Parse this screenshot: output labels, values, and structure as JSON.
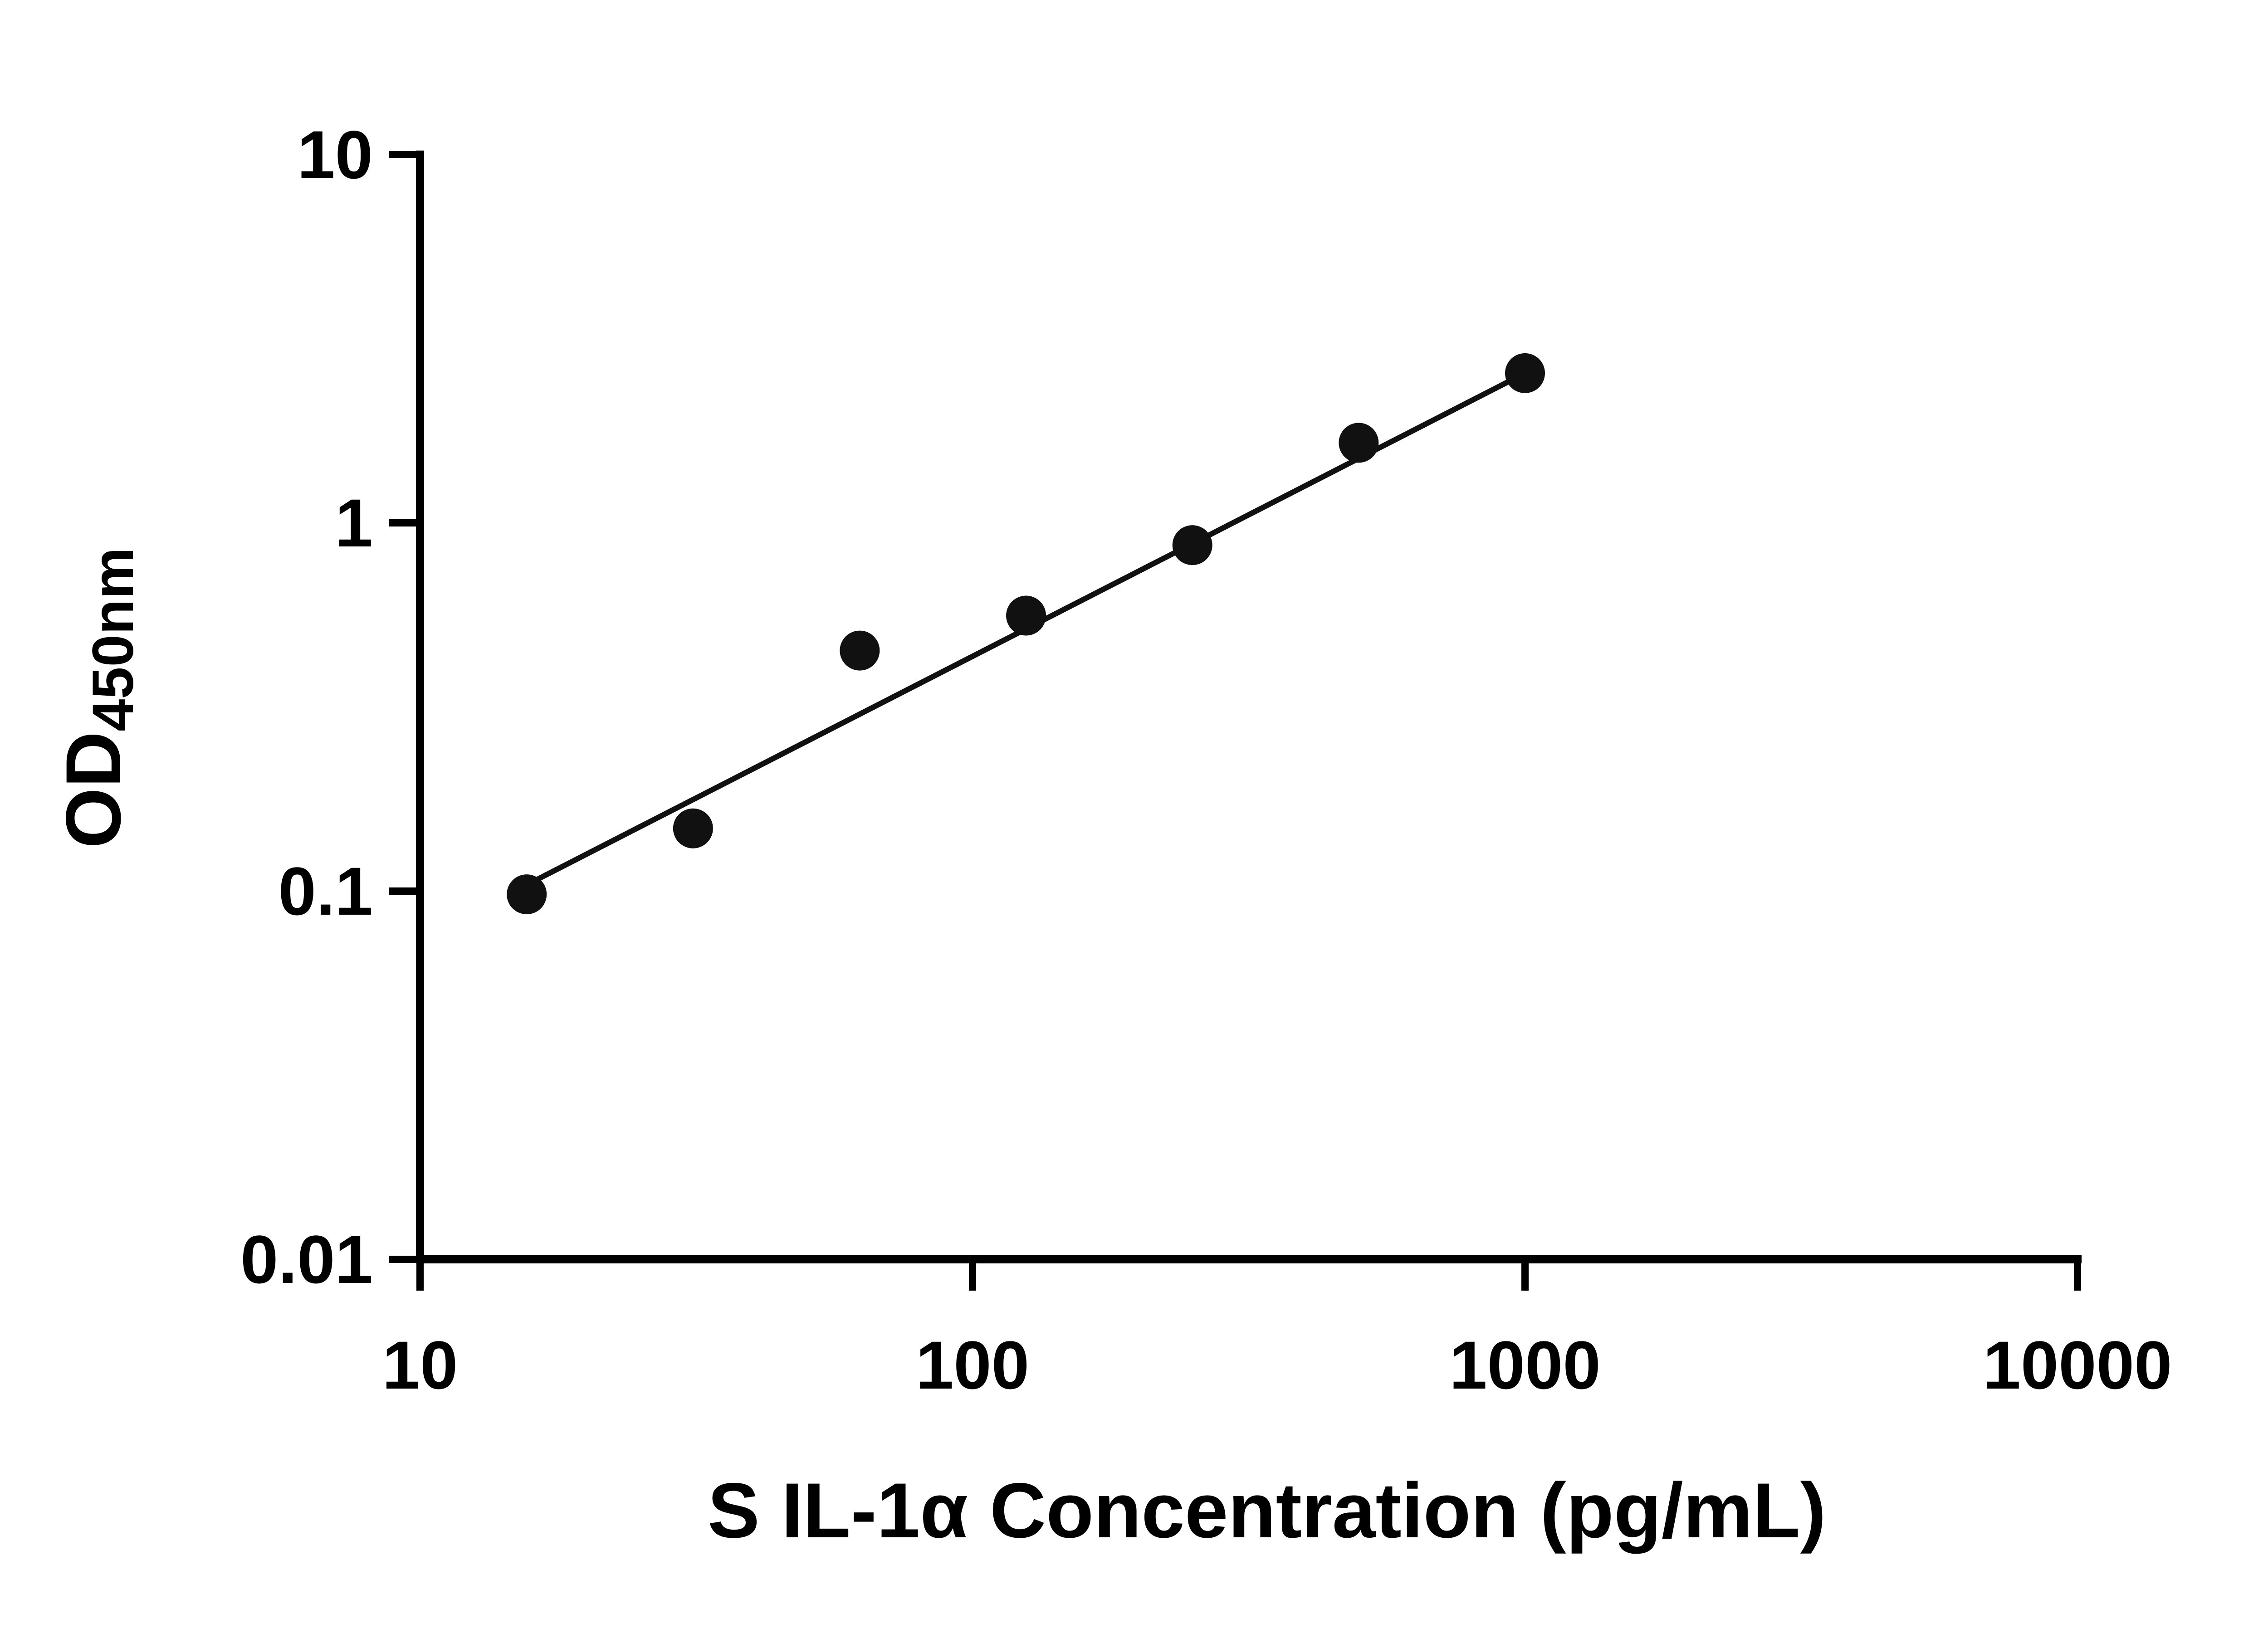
{
  "chart_data": {
    "type": "scatter",
    "title": "",
    "xlabel": "S IL-1α Concentration (pg/mL)",
    "ylabel_main": "OD",
    "ylabel_sub": "450nm",
    "x_scale": "log",
    "y_scale": "log",
    "xlim": [
      10,
      10000
    ],
    "ylim": [
      0.01,
      10
    ],
    "grid": false,
    "legend": false,
    "x_ticks": [
      {
        "value": 10,
        "label": "10"
      },
      {
        "value": 100,
        "label": "100"
      },
      {
        "value": 1000,
        "label": "1000"
      },
      {
        "value": 10000,
        "label": "10000"
      }
    ],
    "y_ticks": [
      {
        "value": 10,
        "label": "10"
      },
      {
        "value": 1,
        "label": "1"
      },
      {
        "value": 0.1,
        "label": "0.1"
      },
      {
        "value": 0.01,
        "label": "0.01"
      }
    ],
    "series": [
      {
        "name": "standard-curve-points",
        "x": [
          15.6,
          31.2,
          62.5,
          125,
          250,
          500,
          1000
        ],
        "y": [
          0.098,
          0.148,
          0.45,
          0.56,
          0.87,
          1.65,
          2.55
        ]
      }
    ],
    "trend_line": {
      "x": [
        15.6,
        1000
      ],
      "y": [
        0.104,
        2.55
      ]
    },
    "axis_color": "#000000",
    "point_color": "#111111",
    "line_color": "#111111"
  }
}
